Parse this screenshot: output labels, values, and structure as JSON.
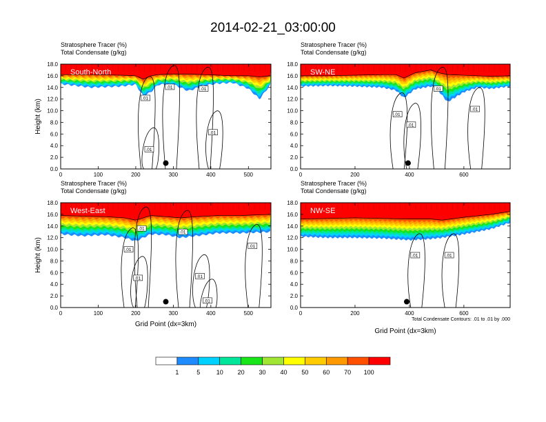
{
  "title": "2014-02-21_03:00:00",
  "chart_data": [
    {
      "type": "heatmap",
      "panel_label": "South-North",
      "title_lines": [
        "Stratosphere Tracer   (%)",
        "Total Condensate   (g/kg)"
      ],
      "ylabel": "Height (km)",
      "xlabel": "",
      "xlim": [
        0,
        560
      ],
      "ylim": [
        0,
        18
      ],
      "x_ticks": [
        "0",
        "100",
        "200",
        "300",
        "400",
        "500"
      ],
      "x_tick_values": [
        0,
        100,
        200,
        300,
        400,
        500
      ],
      "y_ticks": [
        "0.0",
        "2.0",
        "4.0",
        "6.0",
        "8.0",
        "10.0",
        "12.0",
        "14.0",
        "16.0",
        "18.0"
      ],
      "y_tick_values": [
        0,
        2,
        4,
        6,
        8,
        10,
        12,
        14,
        16,
        18
      ],
      "contour_labels": [
        {
          "text": ".01",
          "x": 225,
          "y": 12.2
        },
        {
          "text": ".01",
          "x": 290,
          "y": 14.1
        },
        {
          "text": ".01",
          "x": 380,
          "y": 13.8
        },
        {
          "text": ".01",
          "x": 235,
          "y": 3.4
        },
        {
          "text": ".01",
          "x": 405,
          "y": 6.3
        }
      ],
      "marker": {
        "x": 280,
        "y": 1.0
      },
      "tracer_profile": {
        "x": [
          0,
          80,
          160,
          200,
          220,
          240,
          260,
          300,
          340,
          380,
          420,
          460,
          500,
          530,
          560
        ],
        "z100": [
          16.2,
          16.2,
          16.1,
          16.0,
          15.4,
          16.0,
          16.2,
          16.3,
          16.3,
          16.2,
          16.1,
          16.0,
          16.0,
          15.8,
          16.0
        ],
        "z_base": [
          14.6,
          14.0,
          14.2,
          14.5,
          12.5,
          13.2,
          14.5,
          14.5,
          13.4,
          14.3,
          14.7,
          14.8,
          13.8,
          12.0,
          14.6
        ]
      }
    },
    {
      "type": "heatmap",
      "panel_label": "SW-NE",
      "title_lines": [
        "Stratosphere Tracer   (%)",
        "Total Condensate   (g/kg)"
      ],
      "ylabel": "",
      "xlabel": "",
      "xlim": [
        0,
        770
      ],
      "ylim": [
        0,
        18
      ],
      "x_ticks": [
        "0",
        "200",
        "400",
        "600"
      ],
      "x_tick_values": [
        0,
        200,
        400,
        600
      ],
      "y_ticks": [
        "0.0",
        "2.0",
        "4.0",
        "6.0",
        "8.0",
        "10.0",
        "12.0",
        "14.0",
        "16.0",
        "18.0"
      ],
      "y_tick_values": [
        0,
        2,
        4,
        6,
        8,
        10,
        12,
        14,
        16,
        18
      ],
      "contour_labels": [
        {
          "text": ".01",
          "x": 505,
          "y": 13.8
        },
        {
          "text": ".01",
          "x": 355,
          "y": 9.4
        },
        {
          "text": ".01",
          "x": 405,
          "y": 7.6
        },
        {
          "text": ".01",
          "x": 640,
          "y": 10.3
        }
      ],
      "marker": {
        "x": 395,
        "y": 1.0
      },
      "tracer_profile": {
        "x": [
          0,
          100,
          200,
          300,
          350,
          380,
          420,
          480,
          500,
          540,
          600,
          650,
          700,
          770
        ],
        "z100": [
          16.0,
          16.0,
          16.1,
          16.2,
          16.2,
          15.6,
          16.5,
          17.0,
          16.6,
          16.2,
          16.1,
          16.0,
          15.9,
          16.0
        ],
        "z_base": [
          14.2,
          14.3,
          14.2,
          14.0,
          13.5,
          12.2,
          13.7,
          14.2,
          13.8,
          11.5,
          13.2,
          14.0,
          13.8,
          14.2
        ]
      }
    },
    {
      "type": "heatmap",
      "panel_label": "West-East",
      "title_lines": [
        "Stratosphere Tracer   (%)",
        "Total Condensate   (g/kg)"
      ],
      "ylabel": "Height (km)",
      "xlabel": "Grid Point (dx=3km)",
      "xlim": [
        0,
        560
      ],
      "ylim": [
        0,
        18
      ],
      "x_ticks": [
        "0",
        "100",
        "200",
        "300",
        "400",
        "500"
      ],
      "x_tick_values": [
        0,
        100,
        200,
        300,
        400,
        500
      ],
      "y_ticks": [
        "0.0",
        "2.0",
        "4.0",
        "6.0",
        "8.0",
        "10.0",
        "12.0",
        "14.0",
        "16.0",
        "18.0"
      ],
      "y_tick_values": [
        0,
        2,
        4,
        6,
        8,
        10,
        12,
        14,
        16,
        18
      ],
      "contour_labels": [
        {
          "text": ".01",
          "x": 215,
          "y": 13.6
        },
        {
          "text": ".01",
          "x": 325,
          "y": 13.0
        },
        {
          "text": ".01",
          "x": 180,
          "y": 10.0
        },
        {
          "text": ".01",
          "x": 205,
          "y": 5.1
        },
        {
          "text": ".01",
          "x": 370,
          "y": 5.4
        },
        {
          "text": ".01",
          "x": 510,
          "y": 10.6
        },
        {
          "text": ".01",
          "x": 390,
          "y": 1.2
        }
      ],
      "marker": {
        "x": 280,
        "y": 1.0
      },
      "tracer_profile": {
        "x": [
          0,
          60,
          120,
          170,
          200,
          240,
          280,
          320,
          360,
          420,
          480,
          520,
          560
        ],
        "z100": [
          15.8,
          15.7,
          15.6,
          15.4,
          15.0,
          15.8,
          15.6,
          15.4,
          15.6,
          15.8,
          15.8,
          15.9,
          16.0
        ],
        "z_base": [
          12.6,
          12.3,
          12.5,
          12.0,
          11.4,
          12.6,
          12.5,
          12.0,
          12.3,
          12.8,
          12.8,
          12.9,
          13.0
        ]
      }
    },
    {
      "type": "heatmap",
      "panel_label": "NW-SE",
      "title_lines": [
        "Stratosphere Tracer   (%)",
        "Total Condensate   (g/kg)"
      ],
      "ylabel": "",
      "xlabel": "Grid Point (dx=3km)",
      "note": "Total Condensate Contours: .01 to .01 by .000",
      "xlim": [
        0,
        770
      ],
      "ylim": [
        0,
        18
      ],
      "x_ticks": [
        "0",
        "200",
        "400",
        "600"
      ],
      "x_tick_values": [
        0,
        200,
        400,
        600
      ],
      "y_ticks": [
        "0.0",
        "2.0",
        "4.0",
        "6.0",
        "8.0",
        "10.0",
        "12.0",
        "14.0",
        "16.0",
        "18.0"
      ],
      "y_tick_values": [
        0,
        2,
        4,
        6,
        8,
        10,
        12,
        14,
        16,
        18
      ],
      "contour_labels": [
        {
          "text": ".01",
          "x": 420,
          "y": 9.0
        },
        {
          "text": ".01",
          "x": 545,
          "y": 9.0
        }
      ],
      "marker": {
        "x": 390,
        "y": 1.0
      },
      "tracer_profile": {
        "x": [
          0,
          100,
          200,
          300,
          400,
          480,
          520,
          600,
          700,
          770
        ],
        "z100": [
          15.2,
          15.3,
          15.4,
          15.3,
          15.2,
          15.2,
          15.0,
          15.5,
          16.0,
          16.5
        ],
        "z_base": [
          12.2,
          12.0,
          12.0,
          11.9,
          11.6,
          11.8,
          12.0,
          12.6,
          13.5,
          14.6
        ]
      }
    }
  ],
  "colorbar": {
    "labels": [
      "1",
      "5",
      "10",
      "20",
      "30",
      "40",
      "50",
      "60",
      "70",
      "100"
    ],
    "colors": [
      "#ffffff",
      "#1e8cff",
      "#00d2ff",
      "#00e69a",
      "#19e619",
      "#a0e632",
      "#ffff00",
      "#ffcc00",
      "#ff9900",
      "#ff5000",
      "#ff0000"
    ]
  }
}
